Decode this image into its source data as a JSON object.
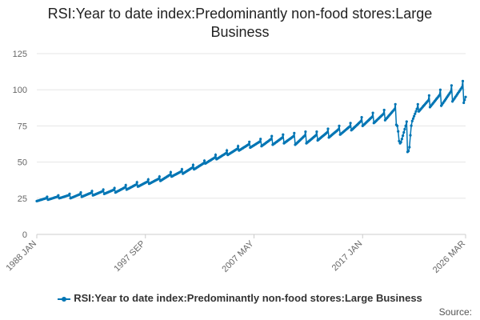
{
  "chart_data": {
    "type": "line",
    "title_lines": [
      "RSI:Year to date index:Predominantly non-food stores:Large",
      "Business"
    ],
    "x_tick_labels": [
      "1988 JAN",
      "1997 SEP",
      "2007 MAY",
      "2017 JAN",
      "2026 MAR"
    ],
    "x_range": [
      "1988 JAN",
      "2026 MAR"
    ],
    "ylim": [
      0,
      125
    ],
    "y_ticks": [
      0,
      25,
      50,
      75,
      100,
      125
    ],
    "grid": true,
    "legend_position": "bottom",
    "color": "#0075b4",
    "series": [
      {
        "name": "RSI:Year to date index:Predominantly non-food stores:Large Business",
        "description": "Monthly values, year-to-date index; estimated annual January low and December high",
        "annual": [
          {
            "year": 1988,
            "low": 23,
            "high": 26
          },
          {
            "year": 1989,
            "low": 24,
            "high": 27
          },
          {
            "year": 1990,
            "low": 25,
            "high": 28
          },
          {
            "year": 1991,
            "low": 25,
            "high": 29
          },
          {
            "year": 1992,
            "low": 26,
            "high": 30
          },
          {
            "year": 1993,
            "low": 27,
            "high": 31
          },
          {
            "year": 1994,
            "low": 28,
            "high": 32
          },
          {
            "year": 1995,
            "low": 29,
            "high": 34
          },
          {
            "year": 1996,
            "low": 31,
            "high": 36
          },
          {
            "year": 1997,
            "low": 33,
            "high": 38
          },
          {
            "year": 1998,
            "low": 35,
            "high": 40
          },
          {
            "year": 1999,
            "low": 37,
            "high": 43
          },
          {
            "year": 2000,
            "low": 40,
            "high": 45
          },
          {
            "year": 2001,
            "low": 42,
            "high": 48
          },
          {
            "year": 2002,
            "low": 45,
            "high": 51
          },
          {
            "year": 2003,
            "low": 49,
            "high": 55
          },
          {
            "year": 2004,
            "low": 52,
            "high": 58
          },
          {
            "year": 2005,
            "low": 55,
            "high": 61
          },
          {
            "year": 2006,
            "low": 58,
            "high": 64
          },
          {
            "year": 2007,
            "low": 60,
            "high": 66
          },
          {
            "year": 2008,
            "low": 61,
            "high": 68
          },
          {
            "year": 2009,
            "low": 62,
            "high": 69
          },
          {
            "year": 2010,
            "low": 63,
            "high": 70
          },
          {
            "year": 2011,
            "low": 62,
            "high": 71
          },
          {
            "year": 2012,
            "low": 63,
            "high": 71
          },
          {
            "year": 2013,
            "low": 65,
            "high": 73
          },
          {
            "year": 2014,
            "low": 67,
            "high": 75
          },
          {
            "year": 2015,
            "low": 69,
            "high": 77
          },
          {
            "year": 2016,
            "low": 72,
            "high": 81
          },
          {
            "year": 2017,
            "low": 75,
            "high": 84
          },
          {
            "year": 2018,
            "low": 77,
            "high": 86
          },
          {
            "year": 2019,
            "low": 79,
            "high": 90
          },
          {
            "year": 2020,
            "low": 63,
            "high": 78
          },
          {
            "year": 2021,
            "low": 57,
            "high": 90
          },
          {
            "year": 2022,
            "low": 85,
            "high": 96
          },
          {
            "year": 2023,
            "low": 88,
            "high": 100
          },
          {
            "year": 2024,
            "low": 89,
            "high": 103
          },
          {
            "year": 2025,
            "low": 92,
            "high": 106
          },
          {
            "year": 2026,
            "low": 91,
            "high": 95
          }
        ]
      }
    ]
  },
  "legend": {
    "label": "RSI:Year to date index:Predominantly non-food stores:Large Business"
  },
  "source_label": "Source:"
}
